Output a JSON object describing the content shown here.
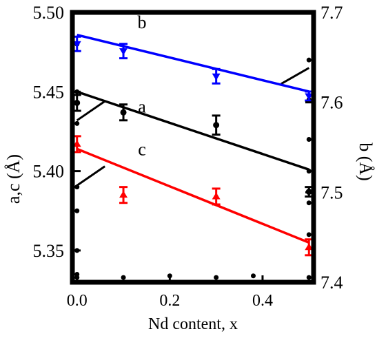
{
  "chart_data": {
    "type": "scatter",
    "xlabel": "Nd content, x",
    "ylabel_left": "a,c (Å)",
    "ylabel_right": "b (Å)",
    "xlim": [
      -0.01,
      0.51
    ],
    "ylim_left": [
      5.33,
      5.5
    ],
    "ylim_right": [
      7.4,
      7.7
    ],
    "x_ticks": [
      "0.0",
      "0.2",
      "0.4"
    ],
    "x_tick_values": [
      0.0,
      0.2,
      0.4
    ],
    "y_left_ticks": [
      "5.35",
      "5.40",
      "5.45",
      "5.50"
    ],
    "y_left_tick_values": [
      5.35,
      5.4,
      5.45,
      5.5
    ],
    "y_right_ticks": [
      "7.4",
      "7.5",
      "7.6",
      "7.7"
    ],
    "y_right_tick_values": [
      7.4,
      7.5,
      7.6,
      7.7
    ],
    "series": [
      {
        "name": "b",
        "axis": "right",
        "color": "#0000ff",
        "marker": "triangle-down",
        "x": [
          0.0,
          0.1,
          0.3,
          0.5
        ],
        "y": [
          7.665,
          7.657,
          7.629,
          7.607
        ],
        "err": [
          0.008,
          0.008,
          0.008,
          0.005
        ],
        "fit": [
          [
            0.0,
            7.675
          ],
          [
            0.5,
            7.612
          ]
        ]
      },
      {
        "name": "a",
        "axis": "left",
        "color": "#000000",
        "marker": "circle",
        "x": [
          0.0,
          0.1,
          0.3,
          0.5
        ],
        "y": [
          5.443,
          5.437,
          5.429,
          5.387
        ],
        "err": [
          0.005,
          0.005,
          0.006,
          0.003
        ],
        "fit": [
          [
            0.0,
            5.45
          ],
          [
            0.5,
            5.401
          ]
        ]
      },
      {
        "name": "c",
        "axis": "left",
        "color": "#ff0000",
        "marker": "triangle-up",
        "x": [
          0.0,
          0.1,
          0.3,
          0.5
        ],
        "y": [
          5.417,
          5.385,
          5.384,
          5.352
        ],
        "err": [
          0.005,
          0.005,
          0.005,
          0.005
        ],
        "fit": [
          [
            0.0,
            5.414
          ],
          [
            0.5,
            5.355
          ]
        ]
      }
    ],
    "annotations": [
      {
        "text": "b",
        "x": 0.14,
        "y": 5.49
      },
      {
        "text": "a",
        "x": 0.14,
        "y": 5.437
      },
      {
        "text": "c",
        "x": 0.14,
        "y": 5.41
      }
    ]
  }
}
